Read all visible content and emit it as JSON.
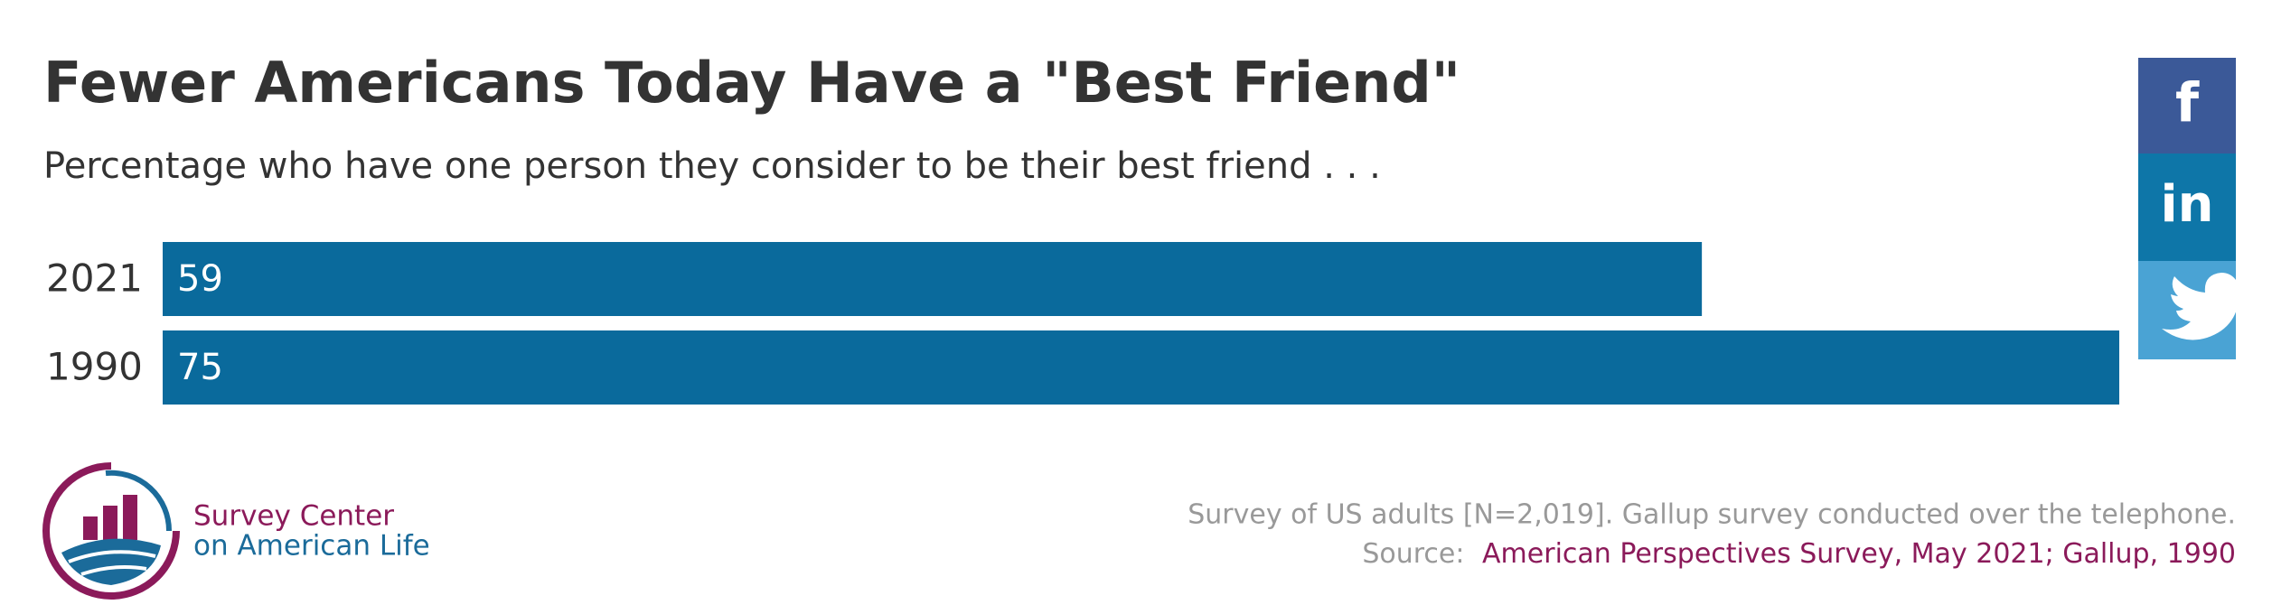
{
  "chart_data": {
    "type": "hbar",
    "title": "Fewer Americans Today Have a \"Best Friend\"",
    "subtitle": "Percentage who have one person they consider to be their best friend . . .",
    "categories": [
      "2021",
      "1990"
    ],
    "values": [
      59,
      75
    ],
    "color": "#0a6a9c"
  },
  "logo": {
    "line1": "Survey Center",
    "line2": "on American Life"
  },
  "footer": {
    "note": "Survey of US adults [N=2,019]. Gallup survey conducted over the telephone.",
    "source_prefix": "Source:",
    "source": "American Perspectives Survey, May 2021; Gallup, 1990"
  },
  "share": {
    "facebook": "f",
    "linkedin": "in"
  }
}
